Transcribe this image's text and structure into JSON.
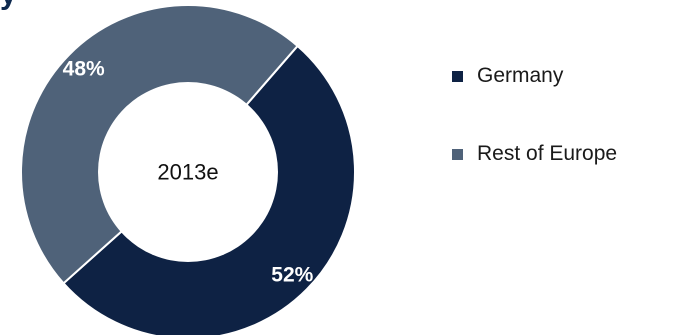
{
  "header": {
    "title_fragment": "y"
  },
  "chart_data": {
    "type": "pie",
    "variant": "donut",
    "center_label": "2013e",
    "categories": [
      "Germany",
      "Rest of Europe"
    ],
    "values": [
      52,
      48
    ],
    "value_labels": [
      "52%",
      "48%"
    ],
    "colors": [
      "#0e2244",
      "#4f6279"
    ],
    "legend_position": "right",
    "title": ""
  },
  "legend": {
    "items": [
      {
        "label": "Germany",
        "color": "#0e2244"
      },
      {
        "label": "Rest of Europe",
        "color": "#4f6279"
      }
    ]
  }
}
